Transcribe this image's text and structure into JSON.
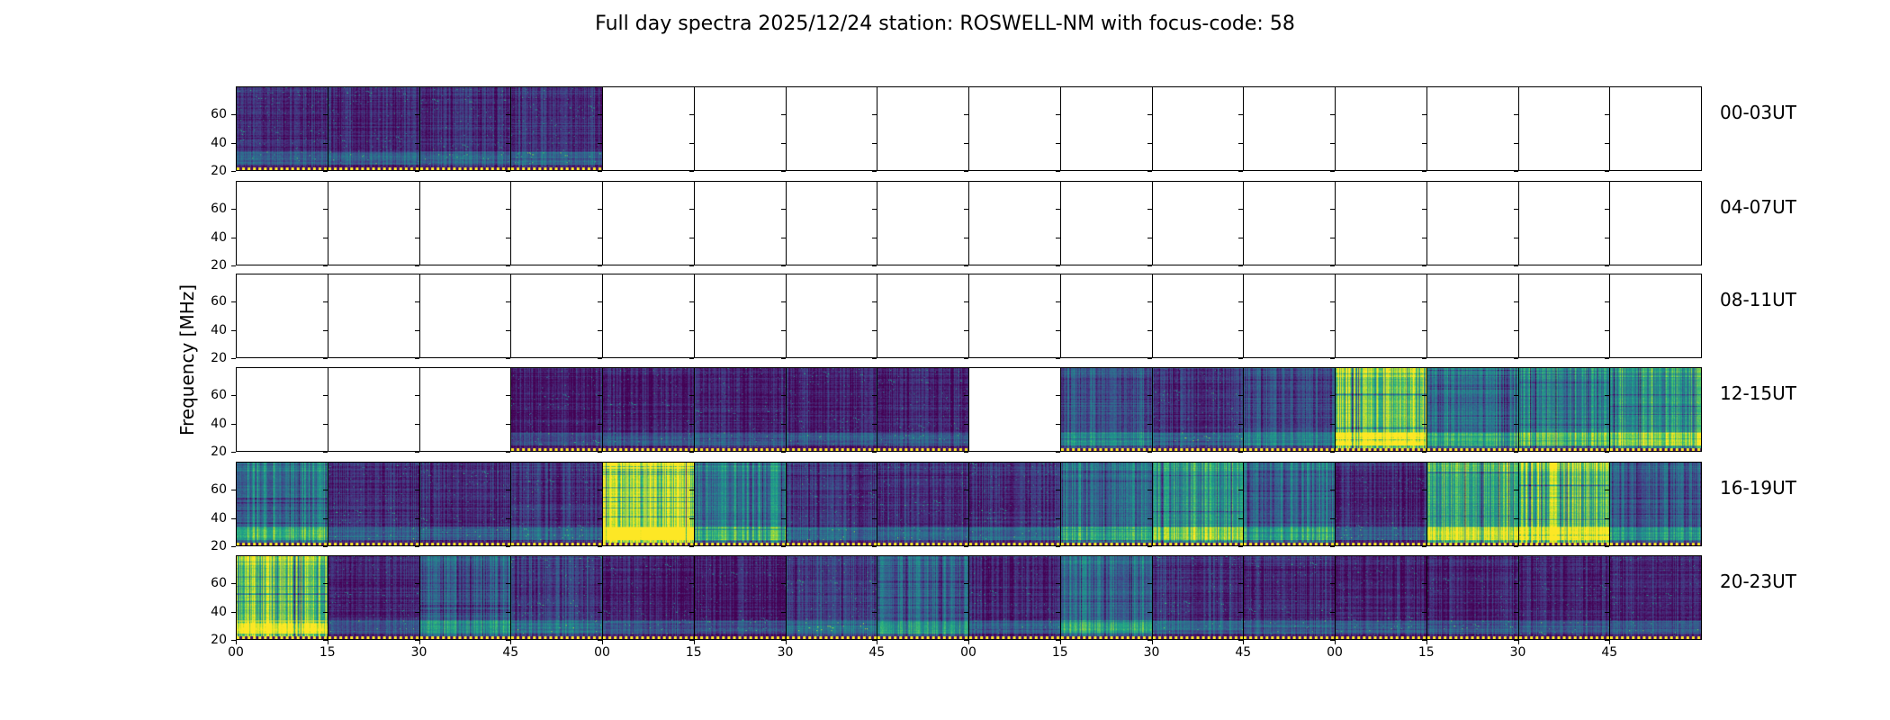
{
  "chart_data": {
    "type": "heatmap",
    "title": "Full day spectra 2025/12/24 station: ROSWELL-NM with focus-code: 58",
    "xlabel": "",
    "ylabel": "Frequency [MHz]",
    "ylim": [
      20,
      80
    ],
    "yticks": [
      "20",
      "40",
      "60"
    ],
    "xticks": [
      "00",
      "15",
      "30",
      "45",
      "00",
      "15",
      "30",
      "45",
      "00",
      "15",
      "30",
      "45",
      "00",
      "15",
      "30",
      "45"
    ],
    "colormap": "viridis",
    "intensity_note": "relative mean intensity per 15-min panel, null = no data",
    "rows": [
      {
        "label": "00-03UT",
        "panels": [
          0.12,
          0.12,
          0.13,
          0.14,
          null,
          null,
          null,
          null,
          null,
          null,
          null,
          null,
          null,
          null,
          null,
          null
        ]
      },
      {
        "label": "04-07UT",
        "panels": [
          null,
          null,
          null,
          null,
          null,
          null,
          null,
          null,
          null,
          null,
          null,
          null,
          null,
          null,
          null,
          null
        ]
      },
      {
        "label": "08-11UT",
        "panels": [
          null,
          null,
          null,
          null,
          null,
          null,
          null,
          null,
          null,
          null,
          null,
          null,
          null,
          null,
          null,
          null
        ]
      },
      {
        "label": "12-15UT",
        "panels": [
          null,
          null,
          null,
          0.08,
          0.08,
          0.1,
          0.1,
          0.1,
          null,
          0.25,
          0.15,
          0.22,
          0.75,
          0.35,
          0.45,
          0.55
        ]
      },
      {
        "label": "16-19UT",
        "panels": [
          0.4,
          0.12,
          0.12,
          0.15,
          0.92,
          0.4,
          0.15,
          0.15,
          0.15,
          0.35,
          0.5,
          0.35,
          0.12,
          0.6,
          0.72,
          0.28
        ]
      },
      {
        "label": "20-23UT",
        "panels": [
          0.72,
          0.1,
          0.3,
          0.18,
          0.08,
          0.08,
          0.18,
          0.3,
          0.1,
          0.35,
          0.15,
          0.12,
          0.1,
          0.1,
          0.1,
          0.1
        ]
      }
    ]
  }
}
